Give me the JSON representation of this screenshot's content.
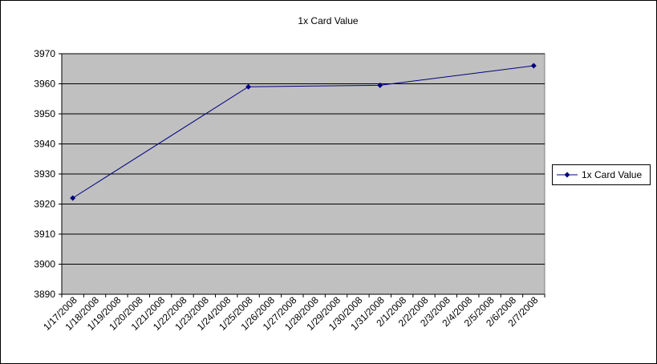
{
  "chart_data": {
    "type": "line",
    "title": "1x Card Value",
    "x": [
      "1/17/2008",
      "1/25/2008",
      "1/31/2008",
      "2/7/2008"
    ],
    "xticks": [
      "1/17/2008",
      "1/18/2008",
      "1/19/2008",
      "1/20/2008",
      "1/21/2008",
      "1/22/2008",
      "1/23/2008",
      "1/24/2008",
      "1/25/2008",
      "1/26/2008",
      "1/27/2008",
      "1/28/2008",
      "1/29/2008",
      "1/30/2008",
      "1/31/2008",
      "2/1/2008",
      "2/2/2008",
      "2/3/2008",
      "2/4/2008",
      "2/5/2008",
      "2/6/2008",
      "2/7/2008"
    ],
    "series": [
      {
        "name": "1x Card Value",
        "color": "#000080",
        "values": [
          3922,
          3959,
          3959.5,
          3966
        ]
      }
    ],
    "ylim": [
      3890,
      3970
    ],
    "yticks": [
      3890,
      3900,
      3910,
      3920,
      3930,
      3940,
      3950,
      3960,
      3970
    ],
    "grid": true,
    "legend": "right"
  }
}
